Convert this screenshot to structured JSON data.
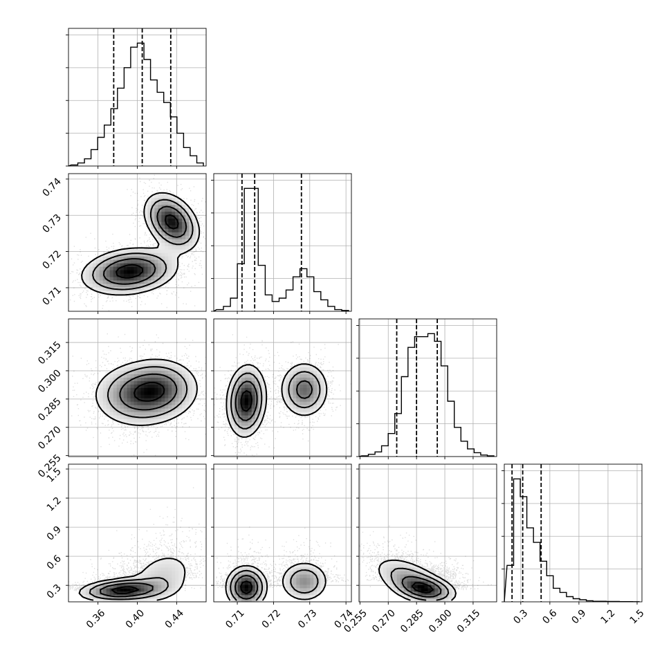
{
  "chart_data": {
    "type": "corner",
    "title": "",
    "grid": true,
    "n_params": 4,
    "params": [
      {
        "ticks": [
          0.36,
          0.4,
          0.44
        ],
        "tick_labels": [
          "0.36",
          "0.40",
          "0.44"
        ],
        "range": [
          0.33,
          0.47
        ],
        "quantiles": [
          0.376,
          0.405,
          0.434
        ]
      },
      {
        "ticks": [
          0.71,
          0.72,
          0.73,
          0.74
        ],
        "tick_labels": [
          "0.71",
          "0.72",
          "0.73",
          "0.74"
        ],
        "range": [
          0.7035,
          0.7415
        ],
        "quantiles": [
          0.7113,
          0.7148,
          0.7277
        ]
      },
      {
        "ticks": [
          0.255,
          0.27,
          0.285,
          0.3,
          0.315
        ],
        "tick_labels": [
          "0.255",
          "0.270",
          "0.285",
          "0.300",
          "0.315"
        ],
        "range": [
          0.2545,
          0.3275
        ],
        "quantiles": [
          0.2745,
          0.285,
          0.296
        ]
      },
      {
        "ticks": [
          0.3,
          0.6,
          0.9,
          1.2,
          1.5
        ],
        "tick_labels": [
          "0.3",
          "0.6",
          "0.9",
          "1.2",
          "1.5"
        ],
        "range": [
          0.13,
          1.55
        ],
        "quantiles": [
          0.21,
          0.32,
          0.51
        ]
      }
    ],
    "histograms": [
      {
        "values": [
          0.5,
          1.5,
          3.5,
          8,
          14,
          20,
          28,
          38,
          48,
          58,
          60,
          52,
          42,
          36,
          31,
          24,
          16,
          9,
          5,
          1.5
        ]
      },
      {
        "values": [
          1,
          3,
          8,
          29,
          75,
          75,
          28,
          10,
          6,
          8,
          13,
          21,
          26,
          21,
          12,
          7,
          3,
          1,
          0.5
        ]
      },
      {
        "values": [
          0.5,
          1.5,
          3,
          7,
          15,
          28,
          52,
          71,
          78,
          78,
          80,
          75,
          59,
          36,
          19,
          10,
          5,
          2.5,
          1,
          0.5
        ]
      },
      {
        "values": [
          35,
          118,
          101,
          71,
          57,
          39,
          25,
          13,
          9,
          5,
          3,
          2,
          1,
          0.5,
          0.5,
          0.3,
          0.3,
          0.2,
          0.2,
          0.1
        ]
      }
    ],
    "pairs": [
      {
        "row": 1,
        "col": 0,
        "modes": [
          {
            "x": 0.392,
            "y": 0.7145,
            "sx": 0.024,
            "sy": 0.0032,
            "w": 0.6,
            "rho": 0.2
          },
          {
            "x": 0.435,
            "y": 0.7282,
            "sx": 0.014,
            "sy": 0.004,
            "w": 0.4,
            "rho": -0.35
          }
        ]
      },
      {
        "row": 2,
        "col": 0,
        "modes": [
          {
            "x": 0.4,
            "y": 0.287,
            "sx": 0.023,
            "sy": 0.0085,
            "w": 0.6,
            "rho": 0.0
          },
          {
            "x": 0.425,
            "y": 0.291,
            "sx": 0.02,
            "sy": 0.008,
            "w": 0.4,
            "rho": 0.0
          }
        ]
      },
      {
        "row": 2,
        "col": 1,
        "modes": [
          {
            "x": 0.7125,
            "y": 0.284,
            "sx": 0.0027,
            "sy": 0.0095,
            "w": 0.6,
            "rho": 0.1
          },
          {
            "x": 0.7285,
            "y": 0.29,
            "sx": 0.0034,
            "sy": 0.0075,
            "w": 0.4,
            "rho": 0.0
          }
        ]
      },
      {
        "row": 3,
        "col": 0,
        "modes": [
          {
            "x": 0.385,
            "y": 0.25,
            "sx": 0.022,
            "sy": 0.06,
            "w": 0.6,
            "rho": 0.2
          },
          {
            "x": 0.425,
            "y": 0.38,
            "sx": 0.02,
            "sy": 0.17,
            "w": 0.4,
            "rho": 0.3
          }
        ]
      },
      {
        "row": 3,
        "col": 1,
        "modes": [
          {
            "x": 0.7125,
            "y": 0.28,
            "sx": 0.0028,
            "sy": 0.11,
            "w": 0.6,
            "rho": 0.0
          },
          {
            "x": 0.7285,
            "y": 0.34,
            "sx": 0.0035,
            "sy": 0.11,
            "w": 0.4,
            "rho": 0.0
          }
        ]
      },
      {
        "row": 3,
        "col": 2,
        "modes": [
          {
            "x": 0.282,
            "y": 0.35,
            "sx": 0.0105,
            "sy": 0.13,
            "w": 0.6,
            "rho": -0.55
          },
          {
            "x": 0.29,
            "y": 0.26,
            "sx": 0.008,
            "sy": 0.07,
            "w": 0.4,
            "rho": -0.3
          }
        ]
      }
    ],
    "colors": {
      "line": "#000000",
      "grid": "#b0b0b0",
      "points": "#000000"
    }
  }
}
